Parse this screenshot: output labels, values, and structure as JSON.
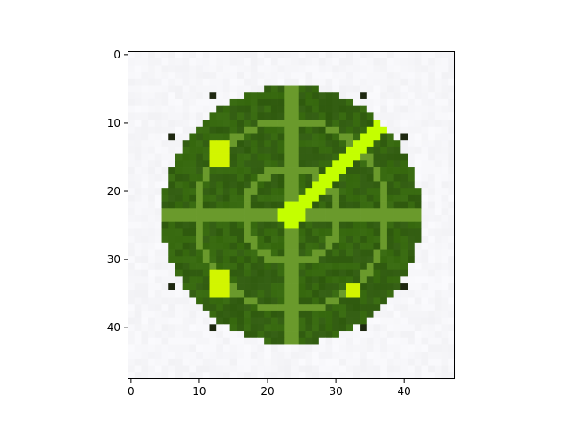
{
  "chart_data": {
    "type": "heatmap",
    "title": "",
    "xlabel": "",
    "ylabel": "",
    "xlim": [
      -0.5,
      47.5
    ],
    "ylim": [
      47.5,
      -0.5
    ],
    "grid": false,
    "x_ticks": [
      0,
      10,
      20,
      30,
      40
    ],
    "y_ticks": [
      0,
      10,
      20,
      30,
      40
    ],
    "x_tick_labels": [
      "0",
      "10",
      "20",
      "30",
      "40"
    ],
    "y_tick_labels": [
      "0",
      "10",
      "20",
      "30",
      "40"
    ],
    "image": {
      "width": 48,
      "height": 48,
      "content": "radar icon",
      "disc": {
        "cx": 23.5,
        "cy": 23.5,
        "r": 19
      },
      "rings": [
        {
          "cx": 23.5,
          "cy": 23.5,
          "r": 7
        },
        {
          "cx": 23.5,
          "cy": 23.5,
          "r": 14
        }
      ],
      "sweep": {
        "from": [
          23.5,
          23.5
        ],
        "to": [
          37,
          10
        ]
      },
      "blips": [
        {
          "x": 13,
          "y": 14.5,
          "r": 2
        },
        {
          "x": 13,
          "y": 33.5,
          "r": 2
        },
        {
          "x": 32.5,
          "y": 34.5,
          "r": 1
        }
      ],
      "corner_dots": [
        [
          12.5,
          6.5
        ],
        [
          34.5,
          6.5
        ],
        [
          6.5,
          12.5
        ],
        [
          40.5,
          12.5
        ],
        [
          6.5,
          34.5
        ],
        [
          40.5,
          34.5
        ],
        [
          12.5,
          40.5
        ],
        [
          34.5,
          40.5
        ]
      ]
    },
    "colors": {
      "background": "#f6f6f9",
      "disc": "#3c6e14",
      "disc_dark": "#2f5a0e",
      "ring": "#6a9a2c",
      "sweep": "#c4ff00",
      "blip": "#d2f500",
      "corner": "#1e2810"
    }
  }
}
